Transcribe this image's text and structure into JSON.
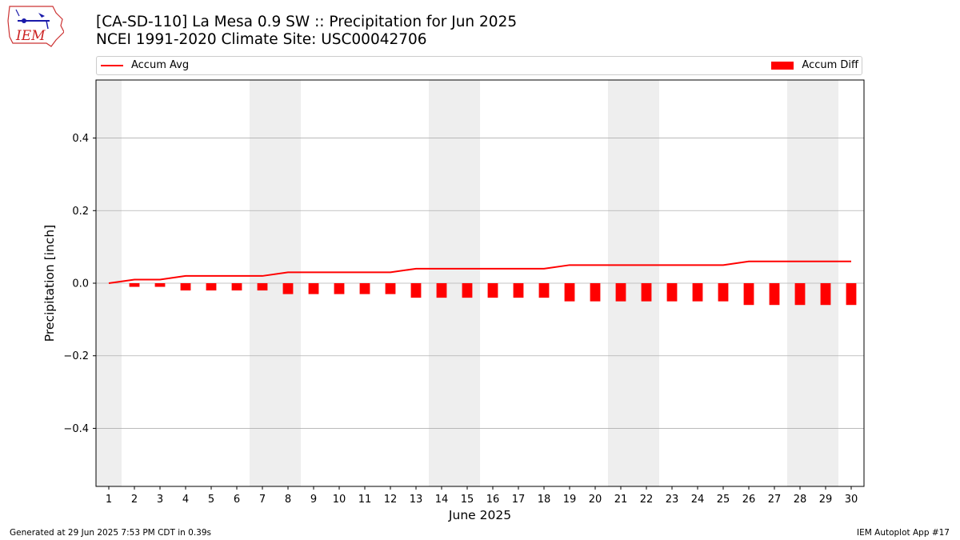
{
  "header": {
    "title_line1": "[CA-SD-110] La Mesa 0.9 SW :: Precipitation for Jun 2025",
    "title_line2": "NCEI 1991-2020 Climate Site: USC00042706",
    "logo_text": "IEM"
  },
  "legend": {
    "line_label": "Accum Avg",
    "bar_label": "Accum Diff"
  },
  "footer": {
    "left": "Generated at 29 Jun 2025 7:53 PM CDT in 0.39s",
    "right": "IEM Autoplot App #17"
  },
  "colors": {
    "line": "#ff0000",
    "bar": "#ff0000",
    "weekend_shade": "#eeeeee",
    "grid": "#b0b0b0"
  },
  "chart_data": {
    "type": "bar",
    "xlabel": "June 2025",
    "ylabel": "Precipitation [inch]",
    "ylim": [
      -0.56,
      0.56
    ],
    "yticks": [
      -0.4,
      -0.2,
      0.0,
      0.2,
      0.4
    ],
    "ytick_labels": [
      "−0.4",
      "−0.2",
      "0.0",
      "0.2",
      "0.4"
    ],
    "grid": "horizontal",
    "legend_placement": "top",
    "x": [
      1,
      2,
      3,
      4,
      5,
      6,
      7,
      8,
      9,
      10,
      11,
      12,
      13,
      14,
      15,
      16,
      17,
      18,
      19,
      20,
      21,
      22,
      23,
      24,
      25,
      26,
      27,
      28,
      29,
      30
    ],
    "shaded_days": [
      1,
      7,
      8,
      14,
      15,
      21,
      22,
      28,
      29
    ],
    "series": [
      {
        "name": "Accum Avg",
        "kind": "line",
        "values": [
          0.0,
          0.01,
          0.01,
          0.02,
          0.02,
          0.02,
          0.02,
          0.03,
          0.03,
          0.03,
          0.03,
          0.03,
          0.04,
          0.04,
          0.04,
          0.04,
          0.04,
          0.04,
          0.05,
          0.05,
          0.05,
          0.05,
          0.05,
          0.05,
          0.05,
          0.06,
          0.06,
          0.06,
          0.06,
          0.06
        ]
      },
      {
        "name": "Accum Diff",
        "kind": "bar",
        "values": [
          0.0,
          -0.01,
          -0.01,
          -0.02,
          -0.02,
          -0.02,
          -0.02,
          -0.03,
          -0.03,
          -0.03,
          -0.03,
          -0.03,
          -0.04,
          -0.04,
          -0.04,
          -0.04,
          -0.04,
          -0.04,
          -0.05,
          -0.05,
          -0.05,
          -0.05,
          -0.05,
          -0.05,
          -0.05,
          -0.06,
          -0.06,
          -0.06,
          -0.06,
          -0.06
        ]
      }
    ]
  }
}
